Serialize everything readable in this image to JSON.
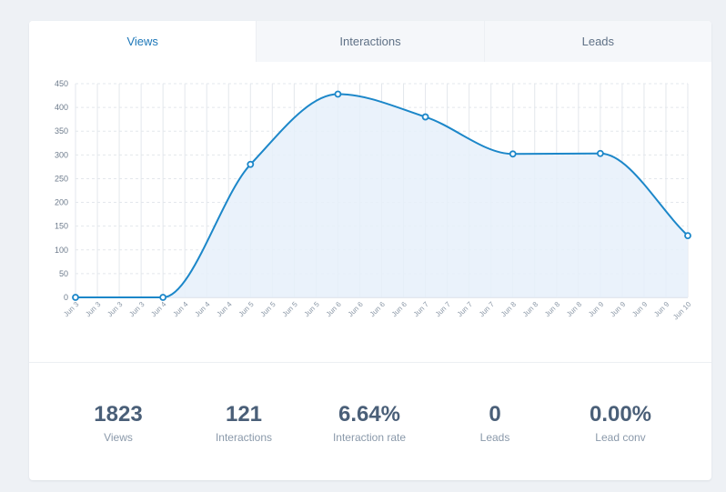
{
  "tabs": [
    {
      "label": "Views",
      "active": true
    },
    {
      "label": "Interactions",
      "active": false
    },
    {
      "label": "Leads",
      "active": false
    }
  ],
  "stats": [
    {
      "value": "1823",
      "label": "Views"
    },
    {
      "value": "121",
      "label": "Interactions"
    },
    {
      "value": "6.64%",
      "label": "Interaction rate"
    },
    {
      "value": "0",
      "label": "Leads"
    },
    {
      "value": "0.00%",
      "label": "Lead conv"
    }
  ],
  "colors": {
    "line": "#1c87c9",
    "fill": "#e6f0fa",
    "grid": "#e3e7ec",
    "accent_tab": "#1e78b9"
  },
  "chart_data": {
    "type": "area",
    "title": "",
    "xlabel": "",
    "ylabel": "",
    "ylim": [
      0,
      450
    ],
    "yticks": [
      0,
      50,
      100,
      150,
      200,
      250,
      300,
      350,
      400,
      450
    ],
    "xtick_labels": [
      "Jun 3",
      "Jun 3",
      "Jun 3",
      "Jun 3",
      "Jun 4",
      "Jun 4",
      "Jun 4",
      "Jun 4",
      "Jun 5",
      "Jun 5",
      "Jun 5",
      "Jun 5",
      "Jun 6",
      "Jun 6",
      "Jun 6",
      "Jun 6",
      "Jun 7",
      "Jun 7",
      "Jun 7",
      "Jun 7",
      "Jun 8",
      "Jun 8",
      "Jun 8",
      "Jun 8",
      "Jun 9",
      "Jun 9",
      "Jun 9",
      "Jun 9",
      "Jun 10"
    ],
    "series": [
      {
        "points": [
          {
            "x": "Jun 3",
            "y": 0
          },
          {
            "x": "Jun 4",
            "y": 0
          },
          {
            "x": "Jun 5",
            "y": 280
          },
          {
            "x": "Jun 6",
            "y": 428
          },
          {
            "x": "Jun 7",
            "y": 380
          },
          {
            "x": "Jun 8",
            "y": 302
          },
          {
            "x": "Jun 9",
            "y": 303
          },
          {
            "x": "Jun 10",
            "y": 130
          }
        ]
      }
    ],
    "grid": true,
    "legend": "none"
  }
}
